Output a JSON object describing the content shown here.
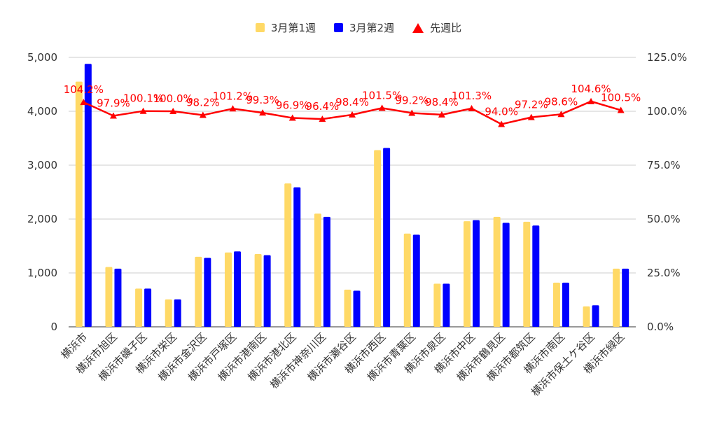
{
  "chart_data": {
    "type": "bar",
    "categories": [
      "横浜市",
      "横浜市旭区",
      "横浜市磯子区",
      "横浜市栄区",
      "横浜市金沢区",
      "横浜市戸塚区",
      "横浜市港南区",
      "横浜市港北区",
      "横浜市神奈川区",
      "横浜市瀬谷区",
      "横浜市西区",
      "横浜市青葉区",
      "横浜市泉区",
      "横浜市中区",
      "横浜市鶴見区",
      "横浜市都筑区",
      "横浜市南区",
      "横浜市保土ケ谷区",
      "横浜市緑区"
    ],
    "series": [
      {
        "name": "3月第1週",
        "type": "bar",
        "axis": "left",
        "color": "#ffd966",
        "values": [
          4550,
          1110,
          710,
          510,
          1300,
          1380,
          1350,
          2660,
          2100,
          690,
          3280,
          1730,
          800,
          1960,
          2040,
          1950,
          820,
          380,
          1080
        ]
      },
      {
        "name": "3月第2週",
        "type": "bar",
        "axis": "left",
        "color": "#0000ff",
        "values": [
          4880,
          1080,
          710,
          510,
          1280,
          1400,
          1330,
          2590,
          2040,
          670,
          3320,
          1710,
          800,
          1980,
          1930,
          1880,
          820,
          400,
          1080
        ]
      },
      {
        "name": "先週比",
        "type": "line",
        "axis": "right",
        "color": "#ff0000",
        "values": [
          104.2,
          97.9,
          100.1,
          100.0,
          98.2,
          101.2,
          99.3,
          96.9,
          96.4,
          98.4,
          101.5,
          99.2,
          98.4,
          101.3,
          94.0,
          97.2,
          98.6,
          104.6,
          100.5
        ],
        "labels": [
          "104.2%",
          "97.9%",
          "100.1%",
          "100.0%",
          "98.2%",
          "101.2%",
          "99.3%",
          "96.9%",
          "96.4%",
          "98.4%",
          "101.5%",
          "99.2%",
          "98.4%",
          "101.3%",
          "94.0%",
          "97.2%",
          "98.6%",
          "104.6%",
          "100.5%"
        ]
      }
    ],
    "y_left": {
      "ylim": [
        0,
        5000
      ],
      "ticks": [
        "0",
        "1,000",
        "2,000",
        "3,000",
        "4,000",
        "5,000"
      ]
    },
    "y_right": {
      "ylim": [
        0,
        125
      ],
      "ticks": [
        "0.0%",
        "25.0%",
        "50.0%",
        "75.0%",
        "100.0%",
        "125.0%"
      ]
    },
    "grid": true,
    "legend": "top"
  }
}
